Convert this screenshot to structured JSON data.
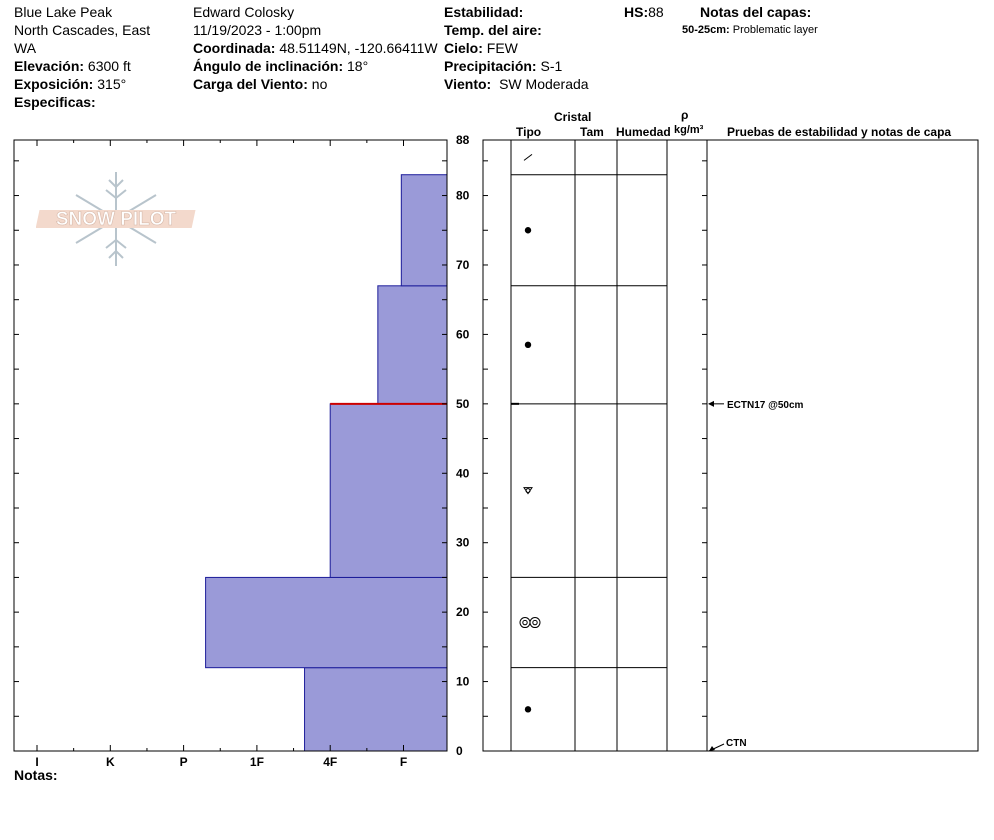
{
  "header": {
    "location_line1": "Blue Lake Peak",
    "location_line2": "North Cascades, East",
    "location_line3": "WA",
    "elevation_label": "Elevación:",
    "elevation_value": "6300 ft",
    "aspect_label": "Exposición:",
    "aspect_value": "315°",
    "specifics_label": "Especificas:",
    "observer": "Edward Colosky",
    "datetime": "11/19/2023 - 1:00pm",
    "coord_label": "Coordinada:",
    "coord_value": "48.51149N, -120.66411W",
    "incline_label": "Ángulo de inclinación:",
    "incline_value": "18°",
    "wind_load_label": "Carga del Viento:",
    "wind_load_value": "no",
    "stability_label": "Estabilidad:",
    "air_temp_label": "Temp. del aire:",
    "sky_label": "Cielo:",
    "sky_value": "FEW",
    "precip_label": "Precipitación:",
    "precip_value": "S-1",
    "wind_label": "Viento:",
    "wind_value": "SW Moderada",
    "hs_label": "HS:",
    "hs_value": "88",
    "layer_notes_label": "Notas del capas:",
    "layer_note_range": "50-25cm:",
    "layer_note_text": "Problematic layer"
  },
  "columns": {
    "crystal": "Cristal",
    "type": "Tipo",
    "size": "Tam",
    "moisture": "Humedad",
    "rho": "ρ",
    "density_unit": "kg/m³",
    "stability_notes": "Pruebas de estabilidad y notas de capa"
  },
  "notes_label": "Notas:",
  "logo_text": "SNOW PILOT",
  "colors": {
    "layer_fill": "#9a9ad8",
    "layer_edge": "#1c1c9a",
    "problem_layer": "#cc0000"
  },
  "chart_data": {
    "type": "bar",
    "title": "",
    "orientation": "horizontal",
    "x_scale": "hand hardness",
    "x_categories": [
      "I",
      "K",
      "P",
      "1F",
      "4F",
      "F"
    ],
    "ylabel": "",
    "ylim": [
      0,
      88
    ],
    "y_ticks": [
      0,
      10,
      20,
      30,
      40,
      50,
      60,
      70,
      80,
      88
    ],
    "layers": [
      {
        "bottom": 0,
        "top": 12,
        "hardness_index": 3.65,
        "grain": "rounds"
      },
      {
        "bottom": 12,
        "top": 25,
        "hardness_index": 2.3,
        "grain": "melt-freeze"
      },
      {
        "bottom": 25,
        "top": 50,
        "hardness_index": 4.0,
        "grain": "faceted-rounded"
      },
      {
        "bottom": 50,
        "top": 67,
        "hardness_index": 4.65,
        "grain": "rounds"
      },
      {
        "bottom": 67,
        "top": 83,
        "hardness_index": 4.97,
        "grain": "rounds"
      },
      {
        "bottom": 83,
        "top": 88,
        "hardness_index": 5.68,
        "grain": "precipitation particles"
      }
    ],
    "problem_layer_depth": 50,
    "stability_tests": [
      {
        "depth": 50,
        "label": "ECTN17 @50cm"
      },
      {
        "depth": 0,
        "label": "CTN"
      }
    ]
  }
}
